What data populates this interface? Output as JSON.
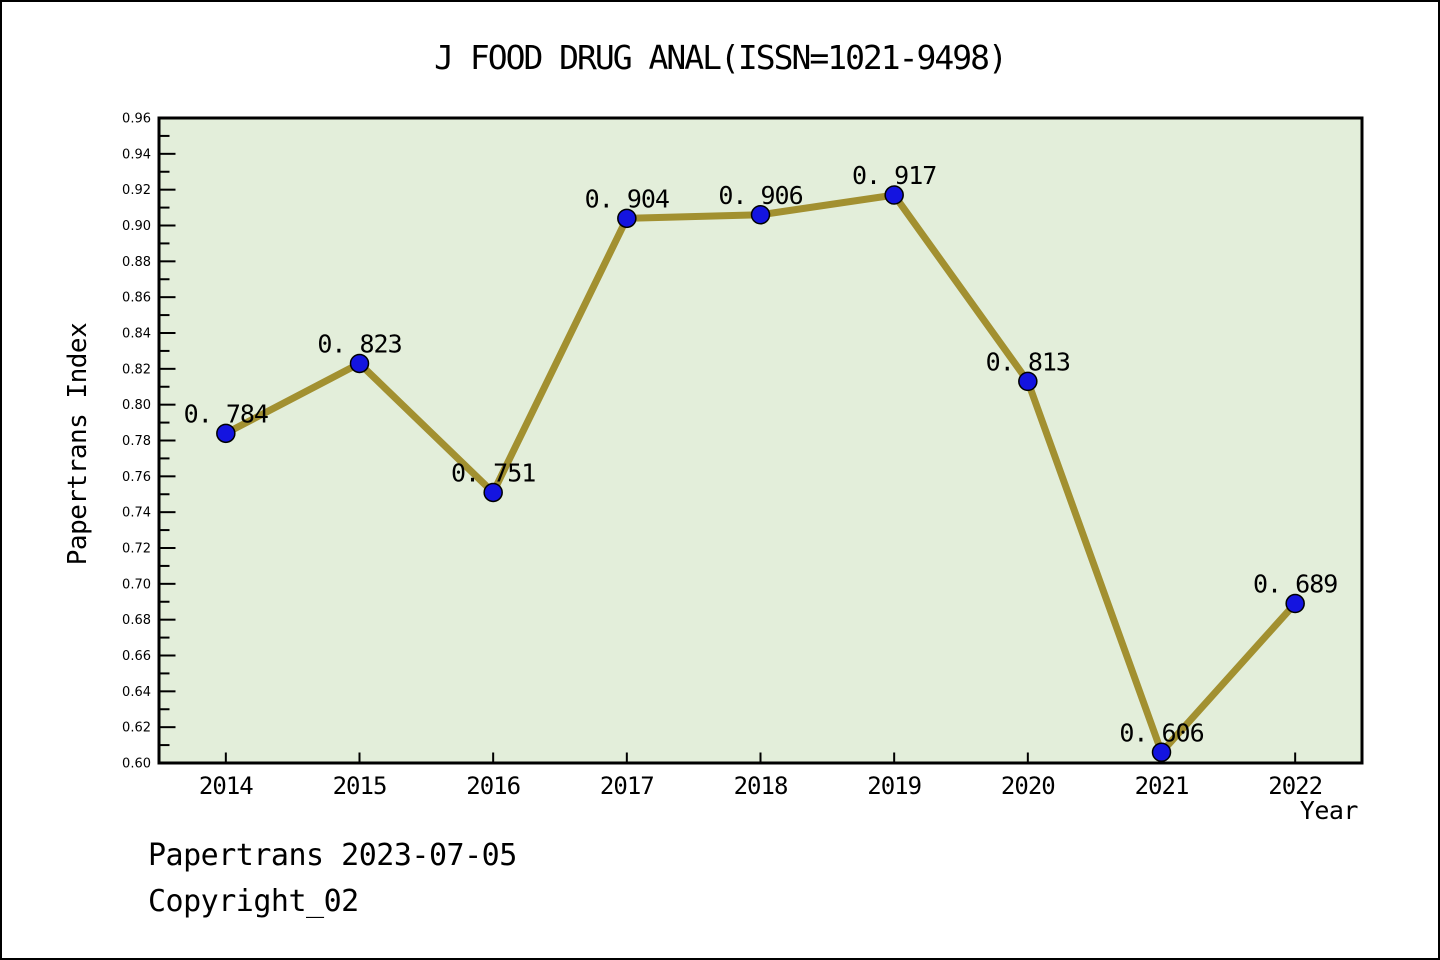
{
  "chart_data": {
    "type": "line",
    "title": "J FOOD DRUG ANAL(ISSN=1021-9498)",
    "xlabel": "Year",
    "ylabel": "Papertrans Index",
    "categories": [
      "2014",
      "2015",
      "2016",
      "2017",
      "2018",
      "2019",
      "2020",
      "2021",
      "2022"
    ],
    "values": [
      0.784,
      0.823,
      0.751,
      0.904,
      0.906,
      0.917,
      0.813,
      0.606,
      0.689
    ],
    "point_labels": [
      "0. 784",
      "0. 823",
      "0. 751",
      "0. 904",
      "0. 906",
      "0. 917",
      "0. 813",
      "0. 606",
      "0. 689"
    ],
    "ylim": [
      0.6,
      0.96
    ],
    "ytick_step": 0.02,
    "ytick_minor_step": 0.01,
    "grid": false,
    "legend": "none",
    "colors": {
      "line": "#a29030",
      "marker": "#1414e0",
      "marker_edge": "#000000",
      "plot_bg": "#e3eeda",
      "frame": "#000000",
      "text": "#000000",
      "page_bg": "#ffffff"
    }
  },
  "footer": {
    "line1": "Papertrans 2023-07-05",
    "line2": "Copyright_02"
  }
}
